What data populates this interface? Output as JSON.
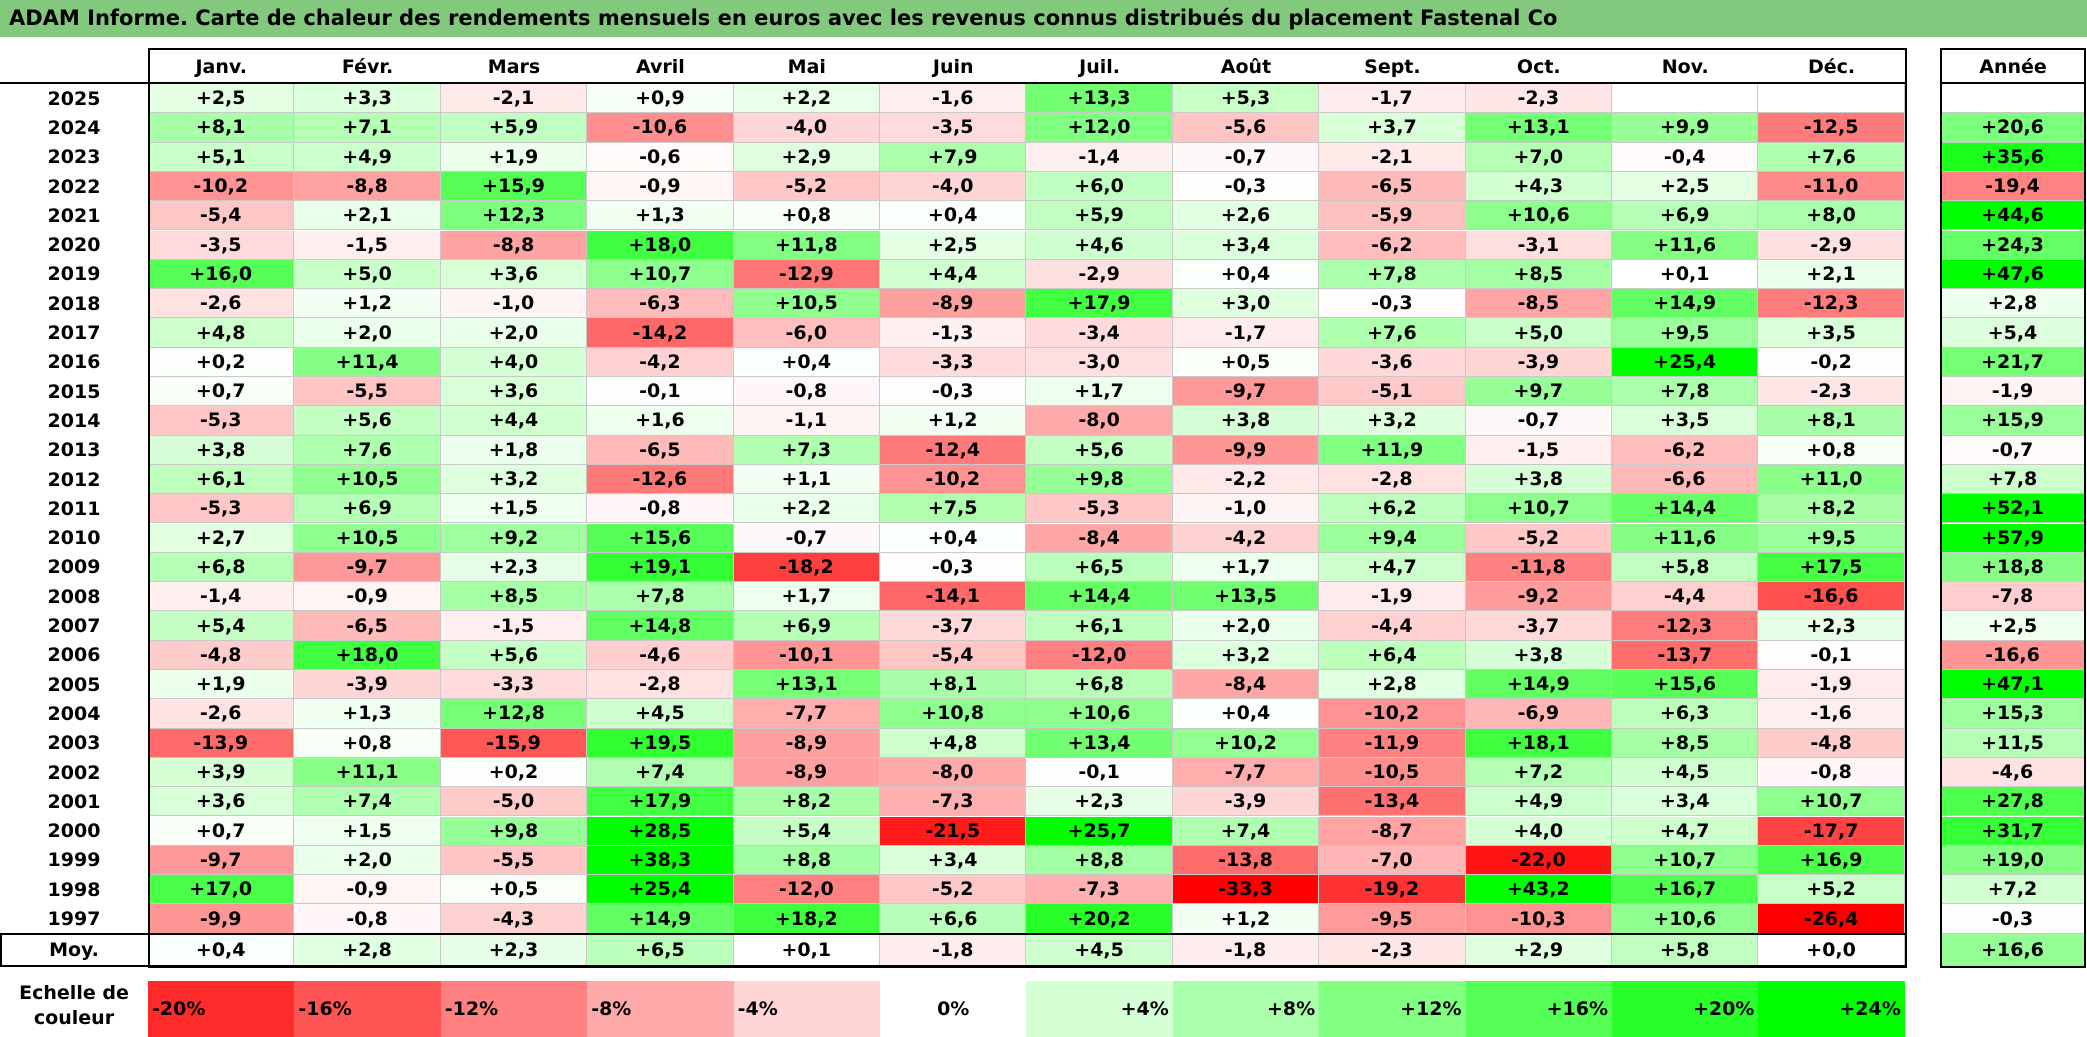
{
  "title": "ADAM Informe. Carte de chaleur des rendements mensuels en euros avec les revenus connus distribués du placement Fastenal Co",
  "chart_data": {
    "type": "heatmap",
    "title": "ADAM Informe. Carte de chaleur des rendements mensuels en euros avec les revenus connus distribués du placement Fastenal Co",
    "months": [
      "Janv.",
      "Févr.",
      "Mars",
      "Avril",
      "Mai",
      "Juin",
      "Juil.",
      "Août",
      "Sept.",
      "Oct.",
      "Nov.",
      "Déc."
    ],
    "year_header": "Année",
    "rows": [
      {
        "year": "2025",
        "values": [
          "+2,5",
          "+3,3",
          "-2,1",
          "+0,9",
          "+2,2",
          "-1,6",
          "+13,3",
          "+5,3",
          "-1,7",
          "-2,3",
          "",
          ""
        ],
        "annual": ""
      },
      {
        "year": "2024",
        "values": [
          "+8,1",
          "+7,1",
          "+5,9",
          "-10,6",
          "-4,0",
          "-3,5",
          "+12,0",
          "-5,6",
          "+3,7",
          "+13,1",
          "+9,9",
          "-12,5"
        ],
        "annual": "+20,6"
      },
      {
        "year": "2023",
        "values": [
          "+5,1",
          "+4,9",
          "+1,9",
          "-0,6",
          "+2,9",
          "+7,9",
          "-1,4",
          "-0,7",
          "-2,1",
          "+7,0",
          "-0,4",
          "+7,6"
        ],
        "annual": "+35,6"
      },
      {
        "year": "2022",
        "values": [
          "-10,2",
          "-8,8",
          "+15,9",
          "-0,9",
          "-5,2",
          "-4,0",
          "+6,0",
          "-0,3",
          "-6,5",
          "+4,3",
          "+2,5",
          "-11,0"
        ],
        "annual": "-19,4"
      },
      {
        "year": "2021",
        "values": [
          "-5,4",
          "+2,1",
          "+12,3",
          "+1,3",
          "+0,8",
          "+0,4",
          "+5,9",
          "+2,6",
          "-5,9",
          "+10,6",
          "+6,9",
          "+8,0"
        ],
        "annual": "+44,6"
      },
      {
        "year": "2020",
        "values": [
          "-3,5",
          "-1,5",
          "-8,8",
          "+18,0",
          "+11,8",
          "+2,5",
          "+4,6",
          "+3,4",
          "-6,2",
          "-3,1",
          "+11,6",
          "-2,9"
        ],
        "annual": "+24,3"
      },
      {
        "year": "2019",
        "values": [
          "+16,0",
          "+5,0",
          "+3,6",
          "+10,7",
          "-12,9",
          "+4,4",
          "-2,9",
          "+0,4",
          "+7,8",
          "+8,5",
          "+0,1",
          "+2,1"
        ],
        "annual": "+47,6"
      },
      {
        "year": "2018",
        "values": [
          "-2,6",
          "+1,2",
          "-1,0",
          "-6,3",
          "+10,5",
          "-8,9",
          "+17,9",
          "+3,0",
          "-0,3",
          "-8,5",
          "+14,9",
          "-12,3"
        ],
        "annual": "+2,8"
      },
      {
        "year": "2017",
        "values": [
          "+4,8",
          "+2,0",
          "+2,0",
          "-14,2",
          "-6,0",
          "-1,3",
          "-3,4",
          "-1,7",
          "+7,6",
          "+5,0",
          "+9,5",
          "+3,5"
        ],
        "annual": "+5,4"
      },
      {
        "year": "2016",
        "values": [
          "+0,2",
          "+11,4",
          "+4,0",
          "-4,2",
          "+0,4",
          "-3,3",
          "-3,0",
          "+0,5",
          "-3,6",
          "-3,9",
          "+25,4",
          "-0,2"
        ],
        "annual": "+21,7"
      },
      {
        "year": "2015",
        "values": [
          "+0,7",
          "-5,5",
          "+3,6",
          "-0,1",
          "-0,8",
          "-0,3",
          "+1,7",
          "-9,7",
          "-5,1",
          "+9,7",
          "+7,8",
          "-2,3"
        ],
        "annual": "-1,9"
      },
      {
        "year": "2014",
        "values": [
          "-5,3",
          "+5,6",
          "+4,4",
          "+1,6",
          "-1,1",
          "+1,2",
          "-8,0",
          "+3,8",
          "+3,2",
          "-0,7",
          "+3,5",
          "+8,1"
        ],
        "annual": "+15,9"
      },
      {
        "year": "2013",
        "values": [
          "+3,8",
          "+7,6",
          "+1,8",
          "-6,5",
          "+7,3",
          "-12,4",
          "+5,6",
          "-9,9",
          "+11,9",
          "-1,5",
          "-6,2",
          "+0,8"
        ],
        "annual": "-0,7"
      },
      {
        "year": "2012",
        "values": [
          "+6,1",
          "+10,5",
          "+3,2",
          "-12,6",
          "+1,1",
          "-10,2",
          "+9,8",
          "-2,2",
          "-2,8",
          "+3,8",
          "-6,6",
          "+11,0"
        ],
        "annual": "+7,8"
      },
      {
        "year": "2011",
        "values": [
          "-5,3",
          "+6,9",
          "+1,5",
          "-0,8",
          "+2,2",
          "+7,5",
          "-5,3",
          "-1,0",
          "+6,2",
          "+10,7",
          "+14,4",
          "+8,2"
        ],
        "annual": "+52,1"
      },
      {
        "year": "2010",
        "values": [
          "+2,7",
          "+10,5",
          "+9,2",
          "+15,6",
          "-0,7",
          "+0,4",
          "-8,4",
          "-4,2",
          "+9,4",
          "-5,2",
          "+11,6",
          "+9,5"
        ],
        "annual": "+57,9"
      },
      {
        "year": "2009",
        "values": [
          "+6,8",
          "-9,7",
          "+2,3",
          "+19,1",
          "-18,2",
          "-0,3",
          "+6,5",
          "+1,7",
          "+4,7",
          "-11,8",
          "+5,8",
          "+17,5"
        ],
        "annual": "+18,8"
      },
      {
        "year": "2008",
        "values": [
          "-1,4",
          "-0,9",
          "+8,5",
          "+7,8",
          "+1,7",
          "-14,1",
          "+14,4",
          "+13,5",
          "-1,9",
          "-9,2",
          "-4,4",
          "-16,6"
        ],
        "annual": "-7,8"
      },
      {
        "year": "2007",
        "values": [
          "+5,4",
          "-6,5",
          "-1,5",
          "+14,8",
          "+6,9",
          "-3,7",
          "+6,1",
          "+2,0",
          "-4,4",
          "-3,7",
          "-12,3",
          "+2,3"
        ],
        "annual": "+2,5"
      },
      {
        "year": "2006",
        "values": [
          "-4,8",
          "+18,0",
          "+5,6",
          "-4,6",
          "-10,1",
          "-5,4",
          "-12,0",
          "+3,2",
          "+6,4",
          "+3,8",
          "-13,7",
          "-0,1"
        ],
        "annual": "-16,6"
      },
      {
        "year": "2005",
        "values": [
          "+1,9",
          "-3,9",
          "-3,3",
          "-2,8",
          "+13,1",
          "+8,1",
          "+6,8",
          "-8,4",
          "+2,8",
          "+14,9",
          "+15,6",
          "-1,9"
        ],
        "annual": "+47,1"
      },
      {
        "year": "2004",
        "values": [
          "-2,6",
          "+1,3",
          "+12,8",
          "+4,5",
          "-7,7",
          "+10,8",
          "+10,6",
          "+0,4",
          "-10,2",
          "-6,9",
          "+6,3",
          "-1,6"
        ],
        "annual": "+15,3"
      },
      {
        "year": "2003",
        "values": [
          "-13,9",
          "+0,8",
          "-15,9",
          "+19,5",
          "-8,9",
          "+4,8",
          "+13,4",
          "+10,2",
          "-11,9",
          "+18,1",
          "+8,5",
          "-4,8"
        ],
        "annual": "+11,5"
      },
      {
        "year": "2002",
        "values": [
          "+3,9",
          "+11,1",
          "+0,2",
          "+7,4",
          "-8,9",
          "-8,0",
          "-0,1",
          "-7,7",
          "-10,5",
          "+7,2",
          "+4,5",
          "-0,8"
        ],
        "annual": "-4,6"
      },
      {
        "year": "2001",
        "values": [
          "+3,6",
          "+7,4",
          "-5,0",
          "+17,9",
          "+8,2",
          "-7,3",
          "+2,3",
          "-3,9",
          "-13,4",
          "+4,9",
          "+3,4",
          "+10,7"
        ],
        "annual": "+27,8"
      },
      {
        "year": "2000",
        "values": [
          "+0,7",
          "+1,5",
          "+9,8",
          "+28,5",
          "+5,4",
          "-21,5",
          "+25,7",
          "+7,4",
          "-8,7",
          "+4,0",
          "+4,7",
          "-17,7"
        ],
        "annual": "+31,7"
      },
      {
        "year": "1999",
        "values": [
          "-9,7",
          "+2,0",
          "-5,5",
          "+38,3",
          "+8,8",
          "+3,4",
          "+8,8",
          "-13,8",
          "-7,0",
          "-22,0",
          "+10,7",
          "+16,9"
        ],
        "annual": "+19,0"
      },
      {
        "year": "1998",
        "values": [
          "+17,0",
          "-0,9",
          "+0,5",
          "+25,4",
          "-12,0",
          "-5,2",
          "-7,3",
          "-33,3",
          "-19,2",
          "+43,2",
          "+16,7",
          "+5,2"
        ],
        "annual": "+7,2"
      },
      {
        "year": "1997",
        "values": [
          "-9,9",
          "-0,8",
          "-4,3",
          "+14,9",
          "+18,2",
          "+6,6",
          "+20,2",
          "+1,2",
          "-9,5",
          "-10,3",
          "+10,6",
          "-26,4"
        ],
        "annual": "-0,3"
      }
    ],
    "average": {
      "label": "Moy.",
      "values": [
        "+0,4",
        "+2,8",
        "+2,3",
        "+6,5",
        "+0,1",
        "-1,8",
        "+4,5",
        "-1,8",
        "-2,3",
        "+2,9",
        "+5,8",
        "+0,0"
      ],
      "annual": "+16,6"
    },
    "color_scale": {
      "label": "Echelle de couleur",
      "stops": [
        "-20%",
        "-16%",
        "-12%",
        "-8%",
        "-4%",
        "0%",
        "+4%",
        "+8%",
        "+12%",
        "+16%",
        "+20%",
        "+24%"
      ],
      "negative_color": "#ff0000",
      "positive_color": "#00ff00",
      "neutral_color": "#ffffff"
    }
  }
}
